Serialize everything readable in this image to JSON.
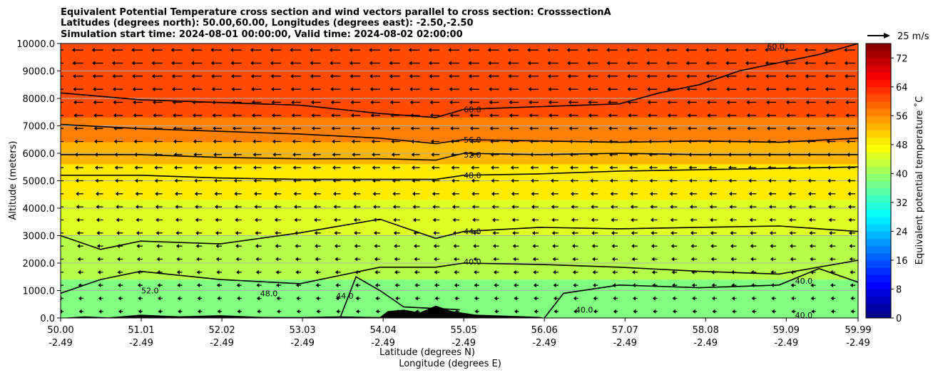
{
  "chart_data": {
    "type": "contour",
    "title_lines": [
      "Equivalent Potential Temperature cross section and wind vectors parallel to cross section: CrosssectionA",
      "Latitudes (degrees north): 50.00,60.00, Longitudes (degrees east): -2.50,-2.50",
      "Simulation start time: 2024-08-01 00:00:00, Valid time: 2024-08-02 02:00:00"
    ],
    "ylabel": "Altitude (meters)",
    "xlabel_lines": [
      "Latitude (degrees N)",
      "Longitude (degrees E)"
    ],
    "x_range": [
      50.0,
      59.99
    ],
    "y_range": [
      0,
      10000
    ],
    "x_ticks": [
      {
        "lat": 50.0,
        "lat_label": "50.00",
        "lon_label": "-2.49"
      },
      {
        "lat": 51.01,
        "lat_label": "51.01",
        "lon_label": "-2.49"
      },
      {
        "lat": 52.02,
        "lat_label": "52.02",
        "lon_label": "-2.49"
      },
      {
        "lat": 53.03,
        "lat_label": "53.03",
        "lon_label": "-2.49"
      },
      {
        "lat": 54.04,
        "lat_label": "54.04",
        "lon_label": "-2.49"
      },
      {
        "lat": 55.05,
        "lat_label": "55.05",
        "lon_label": "-2.49"
      },
      {
        "lat": 56.06,
        "lat_label": "56.06",
        "lon_label": "-2.49"
      },
      {
        "lat": 57.07,
        "lat_label": "57.07",
        "lon_label": "-2.49"
      },
      {
        "lat": 58.08,
        "lat_label": "58.08",
        "lon_label": "-2.49"
      },
      {
        "lat": 59.09,
        "lat_label": "59.09",
        "lon_label": "-2.49"
      },
      {
        "lat": 59.99,
        "lat_label": "59.99",
        "lon_label": "-2.49"
      }
    ],
    "y_ticks": [
      {
        "value": 0,
        "label": "0.0"
      },
      {
        "value": 1000,
        "label": "1000.0"
      },
      {
        "value": 2000,
        "label": "2000.0"
      },
      {
        "value": 3000,
        "label": "3000.0"
      },
      {
        "value": 4000,
        "label": "4000.0"
      },
      {
        "value": 5000,
        "label": "5000.0"
      },
      {
        "value": 6000,
        "label": "6000.0"
      },
      {
        "value": 7000,
        "label": "7000.0"
      },
      {
        "value": 8000,
        "label": "8000.0"
      },
      {
        "value": 9000,
        "label": "9000.0"
      },
      {
        "value": 10000,
        "label": "10000.0"
      }
    ],
    "horizontal_grid": true,
    "filled_bands": [
      {
        "from": 0,
        "to": 1400,
        "theta_e": 38
      },
      {
        "from": 1400,
        "to": 3000,
        "theta_e": 42
      },
      {
        "from": 3000,
        "to": 4300,
        "theta_e": 45
      },
      {
        "from": 4300,
        "to": 5600,
        "theta_e": 49
      },
      {
        "from": 5600,
        "to": 6400,
        "theta_e": 53
      },
      {
        "from": 6400,
        "to": 7300,
        "theta_e": 57
      },
      {
        "from": 7300,
        "to": 10000,
        "theta_e": 61
      }
    ],
    "contour_lines": [
      {
        "level": 60,
        "points": [
          [
            50.0,
            8200
          ],
          [
            51.0,
            7950
          ],
          [
            52.0,
            7850
          ],
          [
            53.0,
            7750
          ],
          [
            54.0,
            7450
          ],
          [
            54.7,
            7300
          ],
          [
            55.05,
            7600
          ],
          [
            56.0,
            7700
          ],
          [
            57.0,
            7800
          ],
          [
            57.5,
            8200
          ],
          [
            58.0,
            8500
          ],
          [
            58.5,
            9000
          ],
          [
            59.0,
            9300
          ],
          [
            59.5,
            9600
          ],
          [
            59.99,
            10000
          ]
        ]
      },
      {
        "level": 56,
        "points": [
          [
            50.0,
            7050
          ],
          [
            51.0,
            6900
          ],
          [
            52.0,
            6800
          ],
          [
            53.0,
            6700
          ],
          [
            54.0,
            6550
          ],
          [
            54.7,
            6350
          ],
          [
            55.05,
            6500
          ],
          [
            56.0,
            6450
          ],
          [
            57.0,
            6400
          ],
          [
            58.0,
            6450
          ],
          [
            59.0,
            6400
          ],
          [
            59.99,
            6550
          ]
        ]
      },
      {
        "level": 52,
        "points": [
          [
            50.0,
            5950
          ],
          [
            51.0,
            5950
          ],
          [
            52.0,
            5850
          ],
          [
            53.0,
            5800
          ],
          [
            54.0,
            5800
          ],
          [
            54.7,
            5750
          ],
          [
            55.05,
            6000
          ],
          [
            56.0,
            5950
          ],
          [
            57.0,
            6000
          ],
          [
            58.0,
            5950
          ],
          [
            59.0,
            5950
          ],
          [
            59.99,
            5950
          ]
        ]
      },
      {
        "level": 48,
        "points": [
          [
            50.0,
            5200
          ],
          [
            51.0,
            5200
          ],
          [
            52.0,
            5100
          ],
          [
            53.0,
            5050
          ],
          [
            54.0,
            5050
          ],
          [
            54.7,
            5050
          ],
          [
            55.05,
            5200
          ],
          [
            56.0,
            5250
          ],
          [
            57.0,
            5350
          ],
          [
            58.0,
            5400
          ],
          [
            59.0,
            5450
          ],
          [
            59.99,
            5500
          ]
        ]
      },
      {
        "level": 44,
        "points": [
          [
            50.0,
            3000
          ],
          [
            50.5,
            2500
          ],
          [
            51.0,
            2800
          ],
          [
            52.0,
            2700
          ],
          [
            53.0,
            3100
          ],
          [
            54.0,
            3600
          ],
          [
            54.7,
            2900
          ],
          [
            55.05,
            3150
          ],
          [
            56.0,
            3300
          ],
          [
            57.0,
            3250
          ],
          [
            58.0,
            3300
          ],
          [
            59.0,
            3350
          ],
          [
            59.99,
            3150
          ]
        ]
      },
      {
        "level": 40,
        "points": [
          [
            50.0,
            900
          ],
          [
            50.5,
            1400
          ],
          [
            51.0,
            1700
          ],
          [
            52.0,
            1400
          ],
          [
            53.0,
            1250
          ],
          [
            54.0,
            1850
          ],
          [
            54.7,
            1850
          ],
          [
            55.05,
            2000
          ],
          [
            56.0,
            1950
          ],
          [
            57.0,
            1850
          ],
          [
            58.0,
            1700
          ],
          [
            59.0,
            1600
          ],
          [
            59.99,
            2100
          ]
        ]
      },
      {
        "level": 40,
        "points": [
          [
            56.06,
            0
          ],
          [
            56.3,
            900
          ],
          [
            57.0,
            1200
          ],
          [
            58.0,
            1100
          ],
          [
            59.0,
            1200
          ],
          [
            59.5,
            1800
          ],
          [
            59.99,
            1300
          ]
        ]
      },
      {
        "level": 40,
        "points": [
          [
            53.5,
            0
          ],
          [
            53.7,
            1500
          ],
          [
            54.0,
            1000
          ],
          [
            54.3,
            400
          ],
          [
            55.0,
            300
          ]
        ]
      }
    ],
    "contour_labels": [
      {
        "text": "60.0",
        "lat": 55.05,
        "alt": 7600
      },
      {
        "text": "56.0",
        "lat": 55.05,
        "alt": 6500
      },
      {
        "text": "52.0",
        "lat": 55.05,
        "alt": 5950
      },
      {
        "text": "48.0",
        "lat": 55.05,
        "alt": 5200
      },
      {
        "text": "44.0",
        "lat": 55.05,
        "alt": 3150
      },
      {
        "text": "40.0",
        "lat": 55.05,
        "alt": 2050
      },
      {
        "text": "60.0",
        "lat": 58.85,
        "alt": 9900
      },
      {
        "text": "52.0",
        "lat": 51.01,
        "alt": 1000
      },
      {
        "text": "48.0",
        "lat": 52.5,
        "alt": 900
      },
      {
        "text": "44.0",
        "lat": 53.45,
        "alt": 800
      },
      {
        "text": "40.0",
        "lat": 59.2,
        "alt": 1350
      },
      {
        "text": "40.0",
        "lat": 59.2,
        "alt": 100
      },
      {
        "text": "40.0",
        "lat": 56.45,
        "alt": 300
      }
    ],
    "wind_vectors": "leftward arrows on a regular grid, longest near the top",
    "terrain_color": "#000000",
    "colorbar": {
      "label": "Equivalent potential temperature ˚C",
      "min": 0,
      "max": 76,
      "ticks": [
        0,
        8,
        16,
        24,
        32,
        40,
        48,
        56,
        64,
        72
      ]
    },
    "quiver_key": {
      "label": "25 m/s"
    }
  }
}
